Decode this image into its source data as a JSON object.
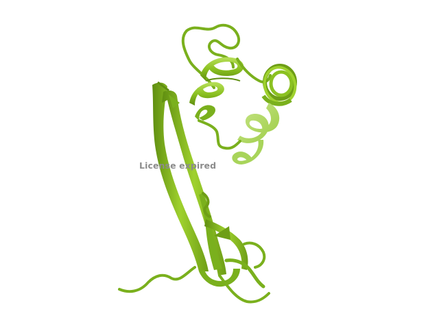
{
  "viewer": {
    "watermark_text": "License expired",
    "background_color": "#ffffff"
  },
  "molecule": {
    "representation": "cartoon",
    "color": "#8bc121",
    "shade_color": "#5f8e10",
    "highlight_color": "#b8e05a"
  }
}
